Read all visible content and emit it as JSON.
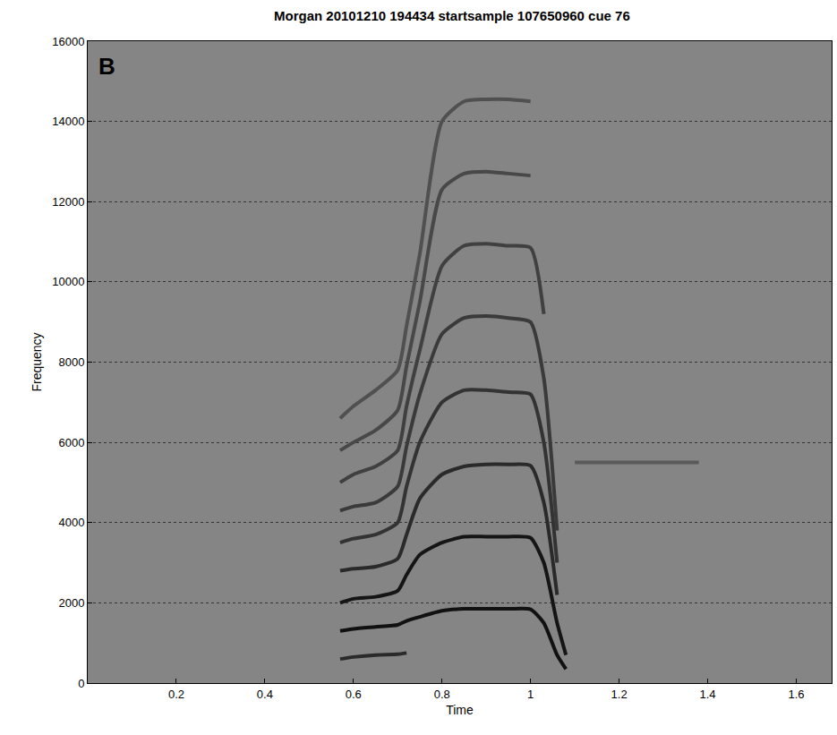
{
  "chart_data": {
    "type": "spectrogram",
    "title": "Morgan 20101210 194434 startsample 107650960 cue 76",
    "x_label": "Time",
    "y_label": "Frequency",
    "annotations": [
      "B"
    ],
    "xlim": [
      0,
      1.68
    ],
    "xticks": [
      0.2,
      0.4,
      0.6,
      0.8,
      1,
      1.2,
      1.4,
      1.6
    ],
    "ylim": [
      0,
      16000
    ],
    "yticks": [
      0,
      2000,
      4000,
      6000,
      8000,
      10000,
      12000,
      14000,
      16000
    ],
    "grid": "y",
    "x": [
      0.57,
      0.6,
      0.65,
      0.7,
      0.72,
      0.75,
      0.8,
      0.85,
      0.9,
      0.95,
      1.0,
      1.03,
      1.06,
      1.08,
      1.1,
      1.2,
      1.3,
      1.38
    ],
    "series": [
      {
        "color": "#2a2a2a",
        "values": [
          600,
          650,
          700,
          720,
          750,
          null,
          null,
          null,
          null,
          null,
          null,
          null,
          null,
          null,
          null,
          null,
          null,
          null
        ]
      },
      {
        "color": "#111111",
        "values": [
          1300,
          1350,
          1400,
          1450,
          1550,
          1650,
          1800,
          1850,
          1850,
          1850,
          1840,
          1500,
          700,
          350,
          null,
          null,
          null,
          null
        ]
      },
      {
        "color": "#151515",
        "values": [
          2000,
          2100,
          2150,
          2300,
          2700,
          3200,
          3500,
          3650,
          3650,
          3650,
          3620,
          3000,
          1500,
          700,
          null,
          null,
          null,
          null
        ]
      },
      {
        "color": "#2a2a2a",
        "values": [
          2800,
          2850,
          2900,
          3100,
          3700,
          4600,
          5200,
          5400,
          5450,
          5450,
          5420,
          4500,
          2200,
          null,
          null,
          null,
          null,
          null
        ]
      },
      {
        "color": "#333333",
        "values": [
          3500,
          3600,
          3700,
          4000,
          4900,
          6000,
          7000,
          7300,
          7300,
          7250,
          7200,
          6000,
          3000,
          null,
          null,
          null,
          null,
          null
        ]
      },
      {
        "color": "#3a3a3a",
        "values": [
          4300,
          4400,
          4500,
          4900,
          5900,
          7200,
          8700,
          9100,
          9150,
          9100,
          9000,
          7600,
          3800,
          null,
          null,
          null,
          null,
          null
        ]
      },
      {
        "color": "#404040",
        "values": [
          5000,
          5200,
          5400,
          5800,
          6900,
          8300,
          10400,
          10900,
          10950,
          10900,
          10850,
          9200,
          null,
          null,
          null,
          null,
          null,
          null
        ]
      },
      {
        "color": "#484848",
        "values": [
          5800,
          6000,
          6300,
          6800,
          7900,
          9500,
          12300,
          12700,
          12750,
          12700,
          12650,
          null,
          null,
          null,
          null,
          null,
          null,
          null
        ]
      },
      {
        "color": "#505050",
        "values": [
          6600,
          6900,
          7300,
          7800,
          8900,
          10700,
          14000,
          14500,
          14550,
          14550,
          14500,
          null,
          null,
          null,
          null,
          null,
          null,
          null
        ]
      },
      {
        "color": "#5a5a5a",
        "values": [
          null,
          null,
          null,
          null,
          null,
          null,
          null,
          null,
          null,
          null,
          null,
          null,
          null,
          null,
          5500,
          5500,
          5500,
          5500
        ]
      }
    ]
  }
}
